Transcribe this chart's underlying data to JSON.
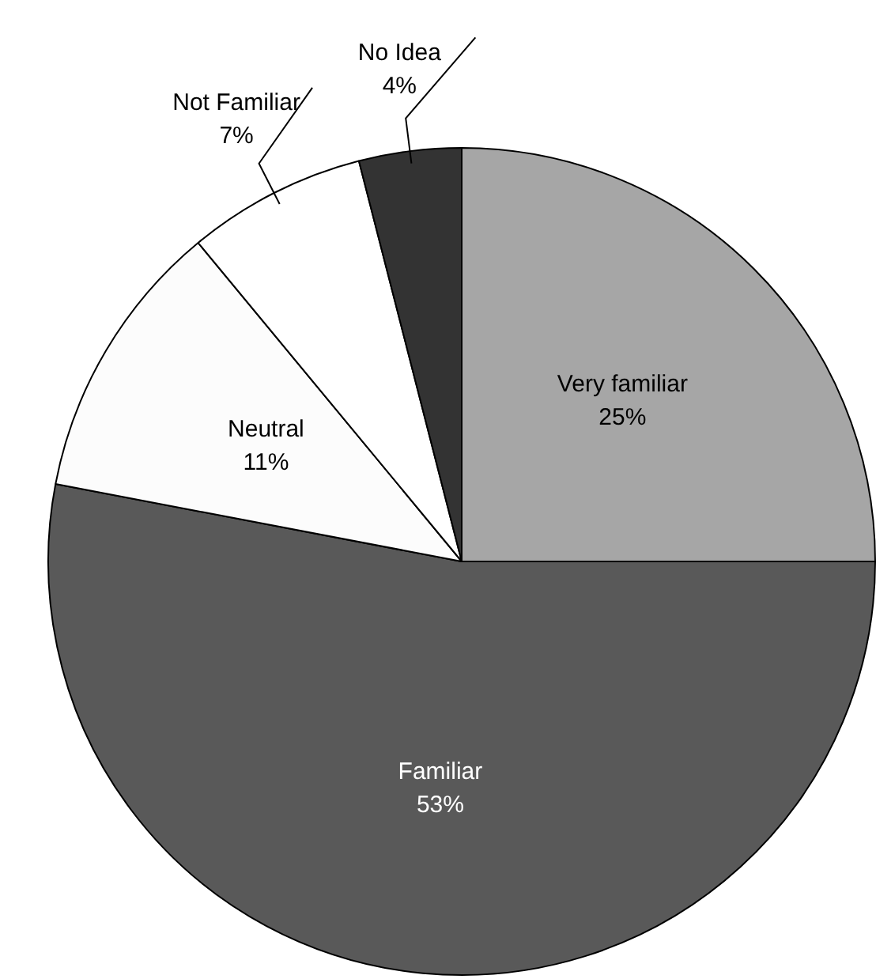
{
  "chart_data": {
    "type": "pie",
    "categories": [
      "Very familiar",
      "Familiar",
      "Neutral",
      "Not Familiar",
      "No Idea"
    ],
    "values": [
      25,
      53,
      11,
      7,
      4
    ],
    "value_labels": [
      "25%",
      "53%",
      "11%",
      "7%",
      "4%"
    ],
    "colors": [
      "#a6a6a6",
      "#595959",
      "#fcfcfc",
      "#ffffff",
      "#333333"
    ],
    "legend": false
  }
}
